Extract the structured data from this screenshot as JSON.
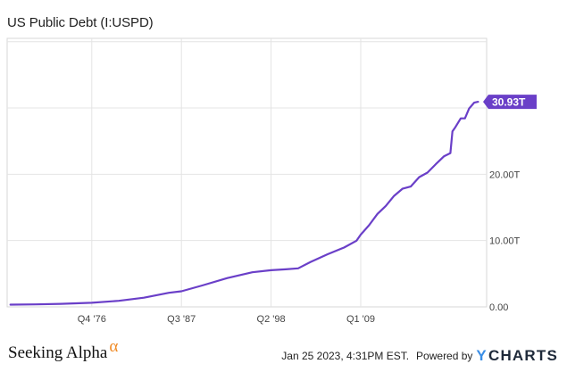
{
  "header": {
    "title": "US Public Debt (I:USPD)"
  },
  "chart_data": {
    "type": "line",
    "title": "US Public Debt (I:USPD)",
    "series": [
      {
        "name": "",
        "color": "#6a3fc8",
        "x": [
          1967.0,
          1970.0,
          1973.0,
          1976.75,
          1980.0,
          1983.0,
          1986.0,
          1987.5,
          1990.0,
          1993.0,
          1996.0,
          1998.25,
          2000.0,
          2001.5,
          2003.0,
          2005.0,
          2007.0,
          2008.5,
          2009.0,
          2010.0,
          2011.0,
          2012.0,
          2013.0,
          2014.0,
          2015.0,
          2016.0,
          2017.0,
          2018.0,
          2019.0,
          2019.75,
          2020.0,
          2020.3,
          2021.0,
          2021.5,
          2022.0,
          2022.6,
          2023.07
        ],
        "y": [
          0.33,
          0.38,
          0.46,
          0.62,
          0.91,
          1.38,
          2.12,
          2.35,
          3.23,
          4.35,
          5.22,
          5.53,
          5.67,
          5.81,
          6.78,
          7.93,
          8.95,
          9.99,
          10.9,
          12.31,
          14.02,
          15.22,
          16.74,
          17.82,
          18.15,
          19.57,
          20.25,
          21.52,
          22.72,
          23.2,
          26.46,
          27.0,
          28.43,
          28.43,
          29.93,
          30.8,
          30.93
        ]
      }
    ],
    "x_ticks": [
      {
        "value": 1976.75,
        "label": "Q4 '76"
      },
      {
        "value": 1987.5,
        "label": "Q3 '87"
      },
      {
        "value": 1998.25,
        "label": "Q2 '98"
      },
      {
        "value": 2009.0,
        "label": "Q1 '09"
      }
    ],
    "y_ticks": [
      {
        "value": 0,
        "label": "0.00"
      },
      {
        "value": 10,
        "label": "10.00T"
      },
      {
        "value": 20,
        "label": "20.00T"
      }
    ],
    "xlim": [
      1966.6,
      2024.1
    ],
    "ylim": [
      0,
      40.5
    ],
    "unit": "T",
    "last_value_label": "30.93T",
    "grid": true,
    "xlabel": "",
    "ylabel": ""
  },
  "footer": {
    "brand": "Seeking Alpha",
    "brand_mark": "α",
    "timestamp": "Jan 25 2023, 4:31PM EST.",
    "powered_by": "Powered by",
    "ycharts_logo": "YCHARTS"
  }
}
